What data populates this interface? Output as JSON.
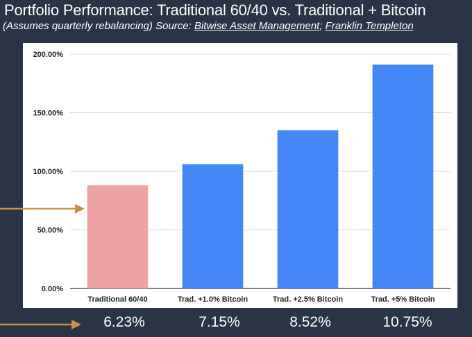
{
  "header": {
    "title": "Portfolio Performance: Traditional 60/40 vs. Traditional + Bitcoin",
    "subtitle_prefix": "(Assumes quarterly rebalancing) Source: ",
    "source_1": "Bitwise Asset Management",
    "separator": ";",
    "source_2": "Franklin Templeton"
  },
  "colors": {
    "background": "#2b3446",
    "arrow": "#c9924a",
    "traditional_bar": "#f0a3a3",
    "bitcoin_bar": "#4287f5"
  },
  "chart_data": {
    "type": "bar",
    "categories": [
      "Traditional 60/40",
      "Trad. +1.0% Bitcoin",
      "Trad. +2.5% Bitcoin",
      "Trad. +5% Bitcoin"
    ],
    "values": [
      88,
      106,
      135,
      191
    ],
    "bar_colors": [
      "#f0a3a3",
      "#4287f5",
      "#4287f5",
      "#4287f5"
    ],
    "ylim": [
      0,
      200
    ],
    "yticks": [
      "0.00%",
      "50.00%",
      "100.00%",
      "150.00%",
      "200.00%"
    ],
    "grid": true,
    "annualized_returns": [
      "6.23%",
      "7.15%",
      "8.52%",
      "10.75%"
    ]
  }
}
